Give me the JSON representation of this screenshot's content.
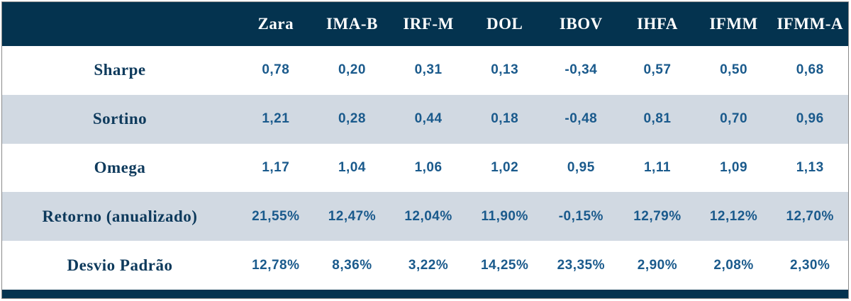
{
  "chart_data": {
    "type": "table",
    "title": "",
    "columns": [
      "Zara",
      "IMA-B",
      "IRF-M",
      "DOL",
      "IBOV",
      "IHFA",
      "IFMM",
      "IFMM-A"
    ],
    "rows": [
      {
        "label": "Sharpe",
        "values": [
          "0,78",
          "0,20",
          "0,31",
          "0,13",
          "-0,34",
          "0,57",
          "0,50",
          "0,68"
        ]
      },
      {
        "label": "Sortino",
        "values": [
          "1,21",
          "0,28",
          "0,44",
          "0,18",
          "-0,48",
          "0,81",
          "0,70",
          "0,96"
        ]
      },
      {
        "label": "Omega",
        "values": [
          "1,17",
          "1,04",
          "1,06",
          "1,02",
          "0,95",
          "1,11",
          "1,09",
          "1,13"
        ]
      },
      {
        "label": "Retorno (anualizado)",
        "values": [
          "21,55%",
          "12,47%",
          "12,04%",
          "11,90%",
          "-0,15%",
          "12,79%",
          "12,12%",
          "12,70%"
        ]
      },
      {
        "label": "Desvio Padrão",
        "values": [
          "12,78%",
          "8,36%",
          "3,22%",
          "14,25%",
          "23,35%",
          "2,90%",
          "2,08%",
          "2,30%"
        ]
      }
    ]
  },
  "colors": {
    "header_bg": "#04334f",
    "header_text": "#ffffff",
    "row_bg": "#ffffff",
    "row_alt_bg": "#d1d9e2",
    "label_text": "#0e3a5c",
    "value_text": "#1a5a8c",
    "footer_bg": "#04334f",
    "outer_border": "#8a8a8a"
  }
}
